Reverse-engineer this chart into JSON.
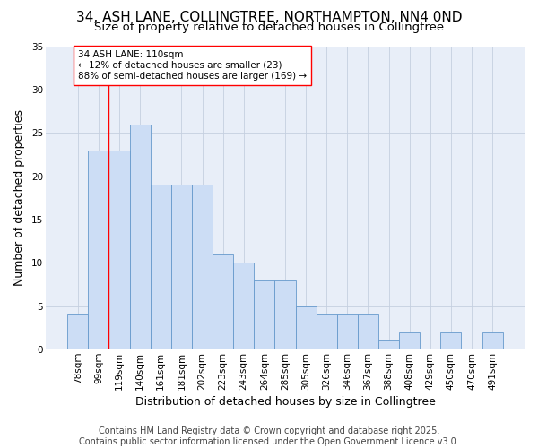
{
  "title": "34, ASH LANE, COLLINGTREE, NORTHAMPTON, NN4 0ND",
  "subtitle": "Size of property relative to detached houses in Collingtree",
  "xlabel": "Distribution of detached houses by size in Collingtree",
  "ylabel": "Number of detached properties",
  "footer_line1": "Contains HM Land Registry data © Crown copyright and database right 2025.",
  "footer_line2": "Contains public sector information licensed under the Open Government Licence v3.0.",
  "bin_labels": [
    "78sqm",
    "99sqm",
    "119sqm",
    "140sqm",
    "161sqm",
    "181sqm",
    "202sqm",
    "223sqm",
    "243sqm",
    "264sqm",
    "285sqm",
    "305sqm",
    "326sqm",
    "346sqm",
    "367sqm",
    "388sqm",
    "408sqm",
    "429sqm",
    "450sqm",
    "470sqm",
    "491sqm"
  ],
  "bar_values": [
    4,
    23,
    23,
    26,
    19,
    19,
    19,
    11,
    10,
    8,
    8,
    5,
    4,
    4,
    4,
    1,
    2,
    0,
    2,
    0,
    2
  ],
  "bar_color": "#ccddf5",
  "bar_edge_color": "#6699cc",
  "annotation_text": "34 ASH LANE: 110sqm\n← 12% of detached houses are smaller (23)\n88% of semi-detached houses are larger (169) →",
  "redline_bar_index": 1,
  "figure_bg": "#ffffff",
  "axes_bg": "#e8eef8",
  "grid_color": "#c5cfe0",
  "title_fontsize": 11,
  "subtitle_fontsize": 9.5,
  "axis_label_fontsize": 9,
  "tick_fontsize": 7.5,
  "annotation_fontsize": 7.5,
  "footer_fontsize": 7,
  "ylim": [
    0,
    35
  ],
  "yticks": [
    0,
    5,
    10,
    15,
    20,
    25,
    30,
    35
  ]
}
